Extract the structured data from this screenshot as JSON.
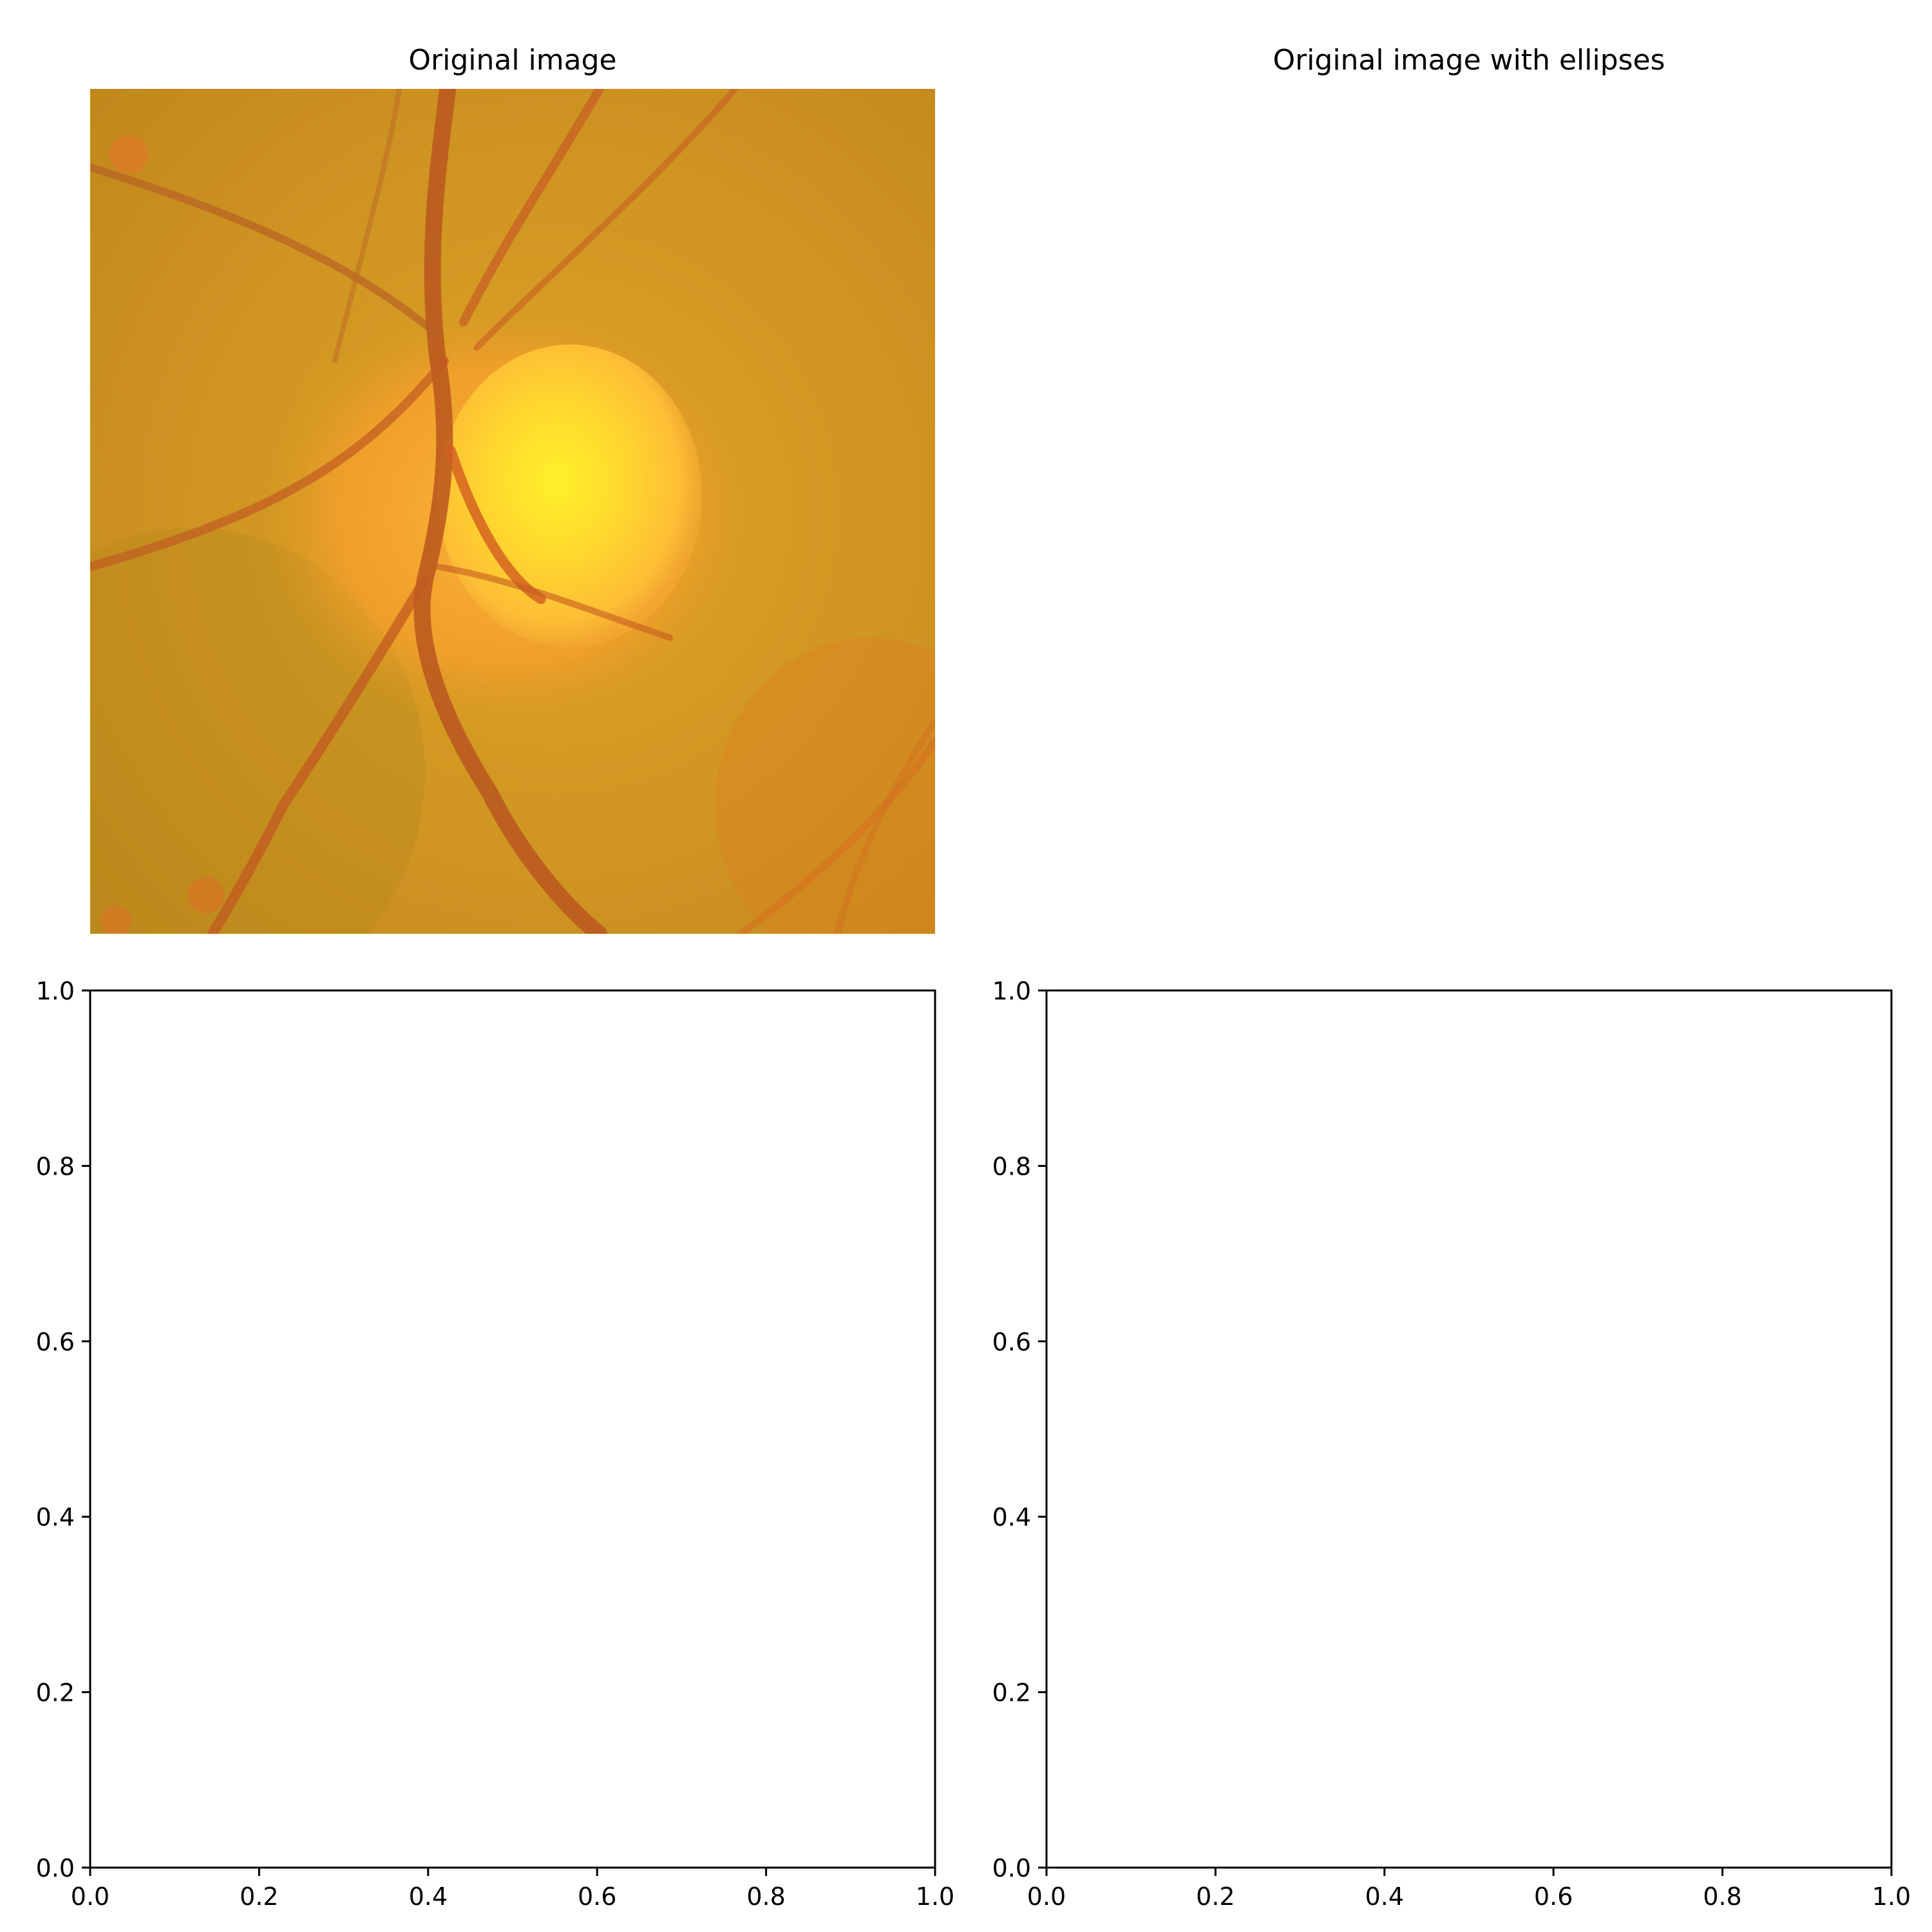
{
  "figure": {
    "panels": [
      {
        "kind": "image",
        "title": "Original image",
        "image_description_name": "retinal-fundus-image"
      },
      {
        "kind": "blank",
        "title": "Original image with ellipses"
      },
      {
        "kind": "axes",
        "title": ""
      },
      {
        "kind": "axes",
        "title": ""
      }
    ]
  },
  "chart_data": [
    {
      "type": "image",
      "title": "Original image",
      "axes_visible": false
    },
    {
      "type": "image",
      "title": "Original image with ellipses",
      "axes_visible": false,
      "content": "empty"
    },
    {
      "type": "scatter",
      "title": "",
      "xlabel": "",
      "ylabel": "",
      "xlim": [
        0.0,
        1.0
      ],
      "ylim": [
        0.0,
        1.0
      ],
      "xticks": [
        "0.0",
        "0.2",
        "0.4",
        "0.6",
        "0.8",
        "1.0"
      ],
      "yticks": [
        "0.0",
        "0.2",
        "0.4",
        "0.6",
        "0.8",
        "1.0"
      ],
      "series": [],
      "grid": false
    },
    {
      "type": "scatter",
      "title": "",
      "xlabel": "",
      "ylabel": "",
      "xlim": [
        0.0,
        1.0
      ],
      "ylim": [
        0.0,
        1.0
      ],
      "xticks": [
        "0.0",
        "0.2",
        "0.4",
        "0.6",
        "0.8",
        "1.0"
      ],
      "yticks": [
        "0.0",
        "0.2",
        "0.4",
        "0.6",
        "0.8",
        "1.0"
      ],
      "series": [],
      "grid": false
    }
  ],
  "colors": {
    "background": "#ffffff",
    "axis": "#000000",
    "fundus_base": "#d89a1e",
    "fundus_dark": "#b97e16",
    "optic_disc": "#ffe233",
    "optic_disc_glow": "#ffb83a",
    "vessel": "#d6541c",
    "vessel_dark": "#b04a22"
  }
}
